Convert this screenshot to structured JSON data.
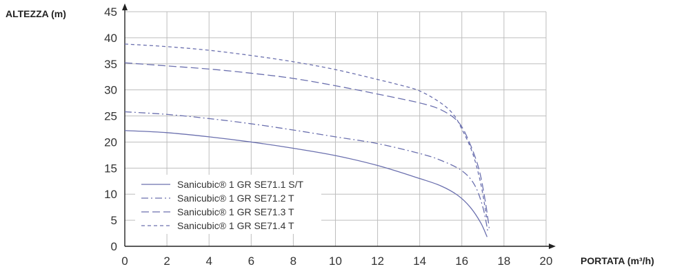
{
  "chart_data": {
    "type": "line",
    "xlabel": "PORTATA (m³/h)",
    "ylabel": "ALTEZZA (m)",
    "xlim": [
      0,
      20
    ],
    "ylim": [
      0,
      45
    ],
    "x_ticks": [
      0,
      2,
      4,
      6,
      8,
      10,
      12,
      14,
      16,
      18,
      20
    ],
    "y_ticks": [
      0,
      5,
      10,
      15,
      20,
      25,
      30,
      35,
      40,
      45
    ],
    "grid": true,
    "legend_position": "bottom-left",
    "series": [
      {
        "name": "Sanicubic® 1 GR SE71.1 S/T",
        "color": "#6a6fae",
        "dash": "solid",
        "x": [
          0,
          2,
          4,
          6,
          8,
          10,
          12,
          14,
          15,
          15.8,
          16.4,
          16.9,
          17.2
        ],
        "y": [
          22.2,
          21.8,
          21.0,
          20.0,
          18.8,
          17.4,
          15.5,
          13.0,
          11.6,
          9.8,
          7.5,
          4.5,
          1.8
        ]
      },
      {
        "name": "Sanicubic® 1 GR SE71.2 T",
        "color": "#6a6fae",
        "dash": "dashdot",
        "x": [
          0,
          2,
          4,
          6,
          8,
          10,
          12,
          14,
          15,
          16,
          16.6,
          17.0,
          17.25
        ],
        "y": [
          25.8,
          25.3,
          24.5,
          23.5,
          22.3,
          21.0,
          19.7,
          17.8,
          16.5,
          14.5,
          11.8,
          7.5,
          2.5
        ]
      },
      {
        "name": "Sanicubic® 1 GR SE71.3 T",
        "color": "#6a6fae",
        "dash": "dashed",
        "x": [
          0,
          2,
          4,
          6,
          8,
          10,
          12,
          14,
          15,
          15.8,
          16.3,
          16.8,
          17.1,
          17.3
        ],
        "y": [
          35.2,
          34.6,
          34.0,
          33.2,
          32.2,
          30.8,
          29.2,
          27.5,
          26.2,
          24.0,
          20.5,
          15.0,
          9.0,
          3.5
        ]
      },
      {
        "name": "Sanicubic® 1 GR SE71.4 T",
        "color": "#6a6fae",
        "dash": "dotted",
        "x": [
          0,
          2,
          4,
          6,
          8,
          10,
          12,
          13,
          14,
          15,
          15.6,
          16.0,
          16.5,
          16.9,
          17.2
        ],
        "y": [
          38.8,
          38.3,
          37.6,
          36.6,
          35.4,
          33.9,
          32.0,
          31.0,
          29.8,
          27.5,
          25.3,
          22.5,
          18.0,
          12.0,
          5.0
        ]
      }
    ]
  }
}
